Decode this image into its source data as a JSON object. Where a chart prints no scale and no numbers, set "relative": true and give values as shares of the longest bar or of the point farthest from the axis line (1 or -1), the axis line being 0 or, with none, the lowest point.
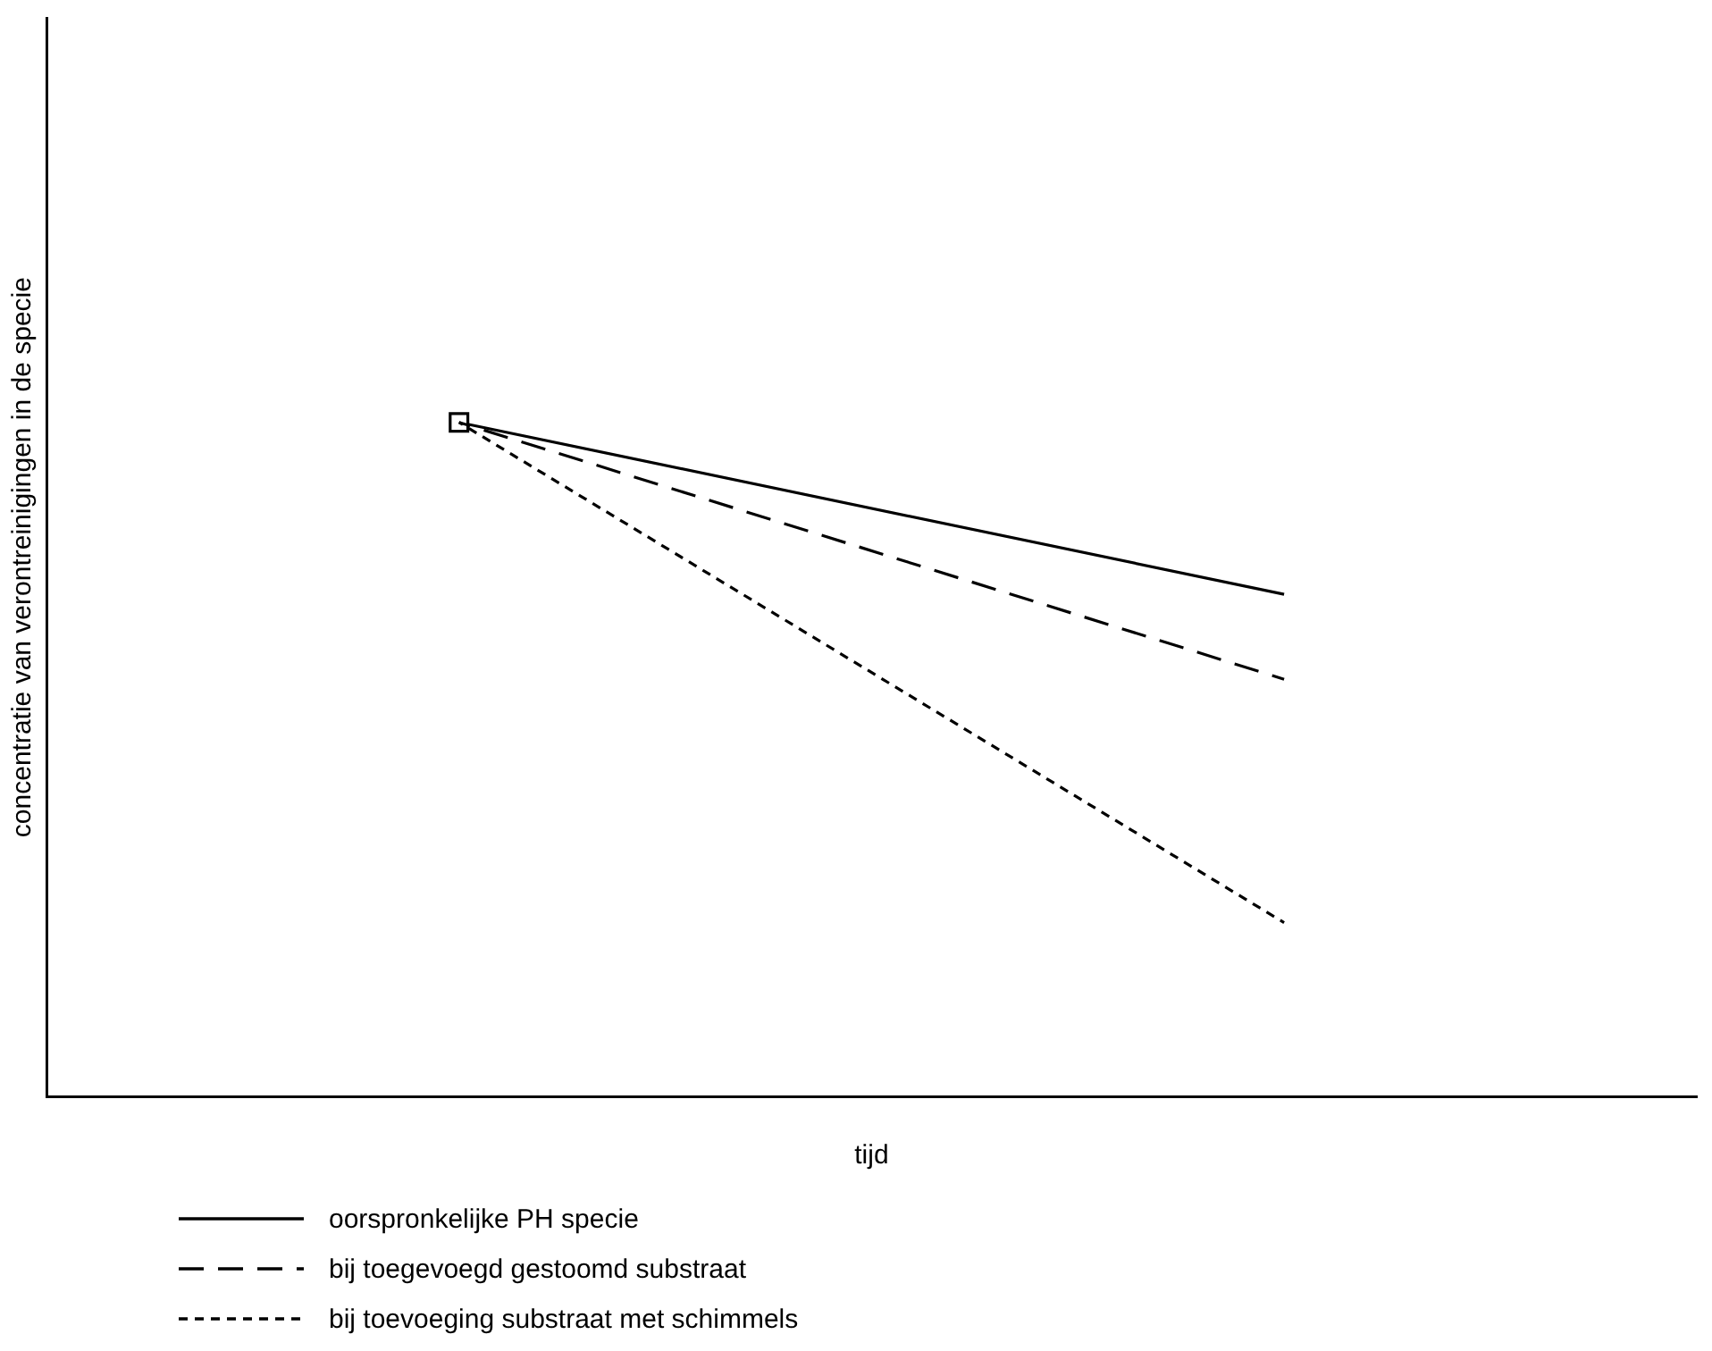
{
  "chart_data": {
    "type": "line",
    "relative": true,
    "xlabel": "tijd",
    "ylabel": "concentratie van verontreinigingen in de specie",
    "categories": [
      null,
      null
    ],
    "legend": "bottom left",
    "grid": false,
    "marker": "none",
    "series": [
      {
        "name": "oorspronkelijke PH specie",
        "color": "#000000",
        "values": [
          1,
          0.745
        ],
        "line_style": "solid",
        "marker": "square"
      },
      {
        "name": "bij toegevoegd gestoomd substraat",
        "color": "#000000",
        "values": [
          1,
          0.619
        ],
        "line_style": "dashed"
      },
      {
        "name": "bij toevoeging substraat met schimmels",
        "color": "#000000",
        "values": [
          1,
          0.258
        ],
        "line_style": "dotted"
      }
    ]
  }
}
